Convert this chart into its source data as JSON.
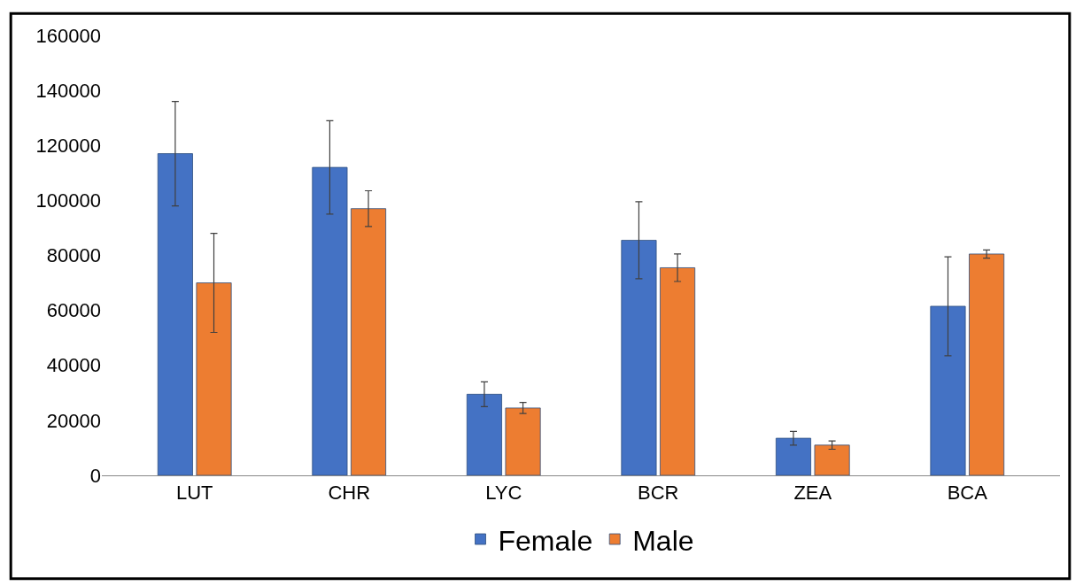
{
  "chart_data": {
    "type": "bar",
    "categories": [
      "LUT",
      "CHR",
      "LYC",
      "BCR",
      "ZEA",
      "BCA"
    ],
    "series": [
      {
        "name": "Female",
        "color": "#4472c4",
        "values": [
          117000,
          112000,
          29500,
          85500,
          13500,
          61500
        ],
        "errors": [
          19000,
          17000,
          4500,
          14000,
          2500,
          18000
        ]
      },
      {
        "name": "Male",
        "color": "#ed7d31",
        "values": [
          70000,
          97000,
          24500,
          75500,
          11000,
          80500
        ],
        "errors": [
          18000,
          6500,
          2000,
          5000,
          1500,
          1500
        ]
      }
    ],
    "ylim": [
      0,
      160000
    ],
    "yticks": [
      0,
      20000,
      40000,
      60000,
      80000,
      100000,
      120000,
      140000,
      160000
    ],
    "legend": "bottom"
  }
}
